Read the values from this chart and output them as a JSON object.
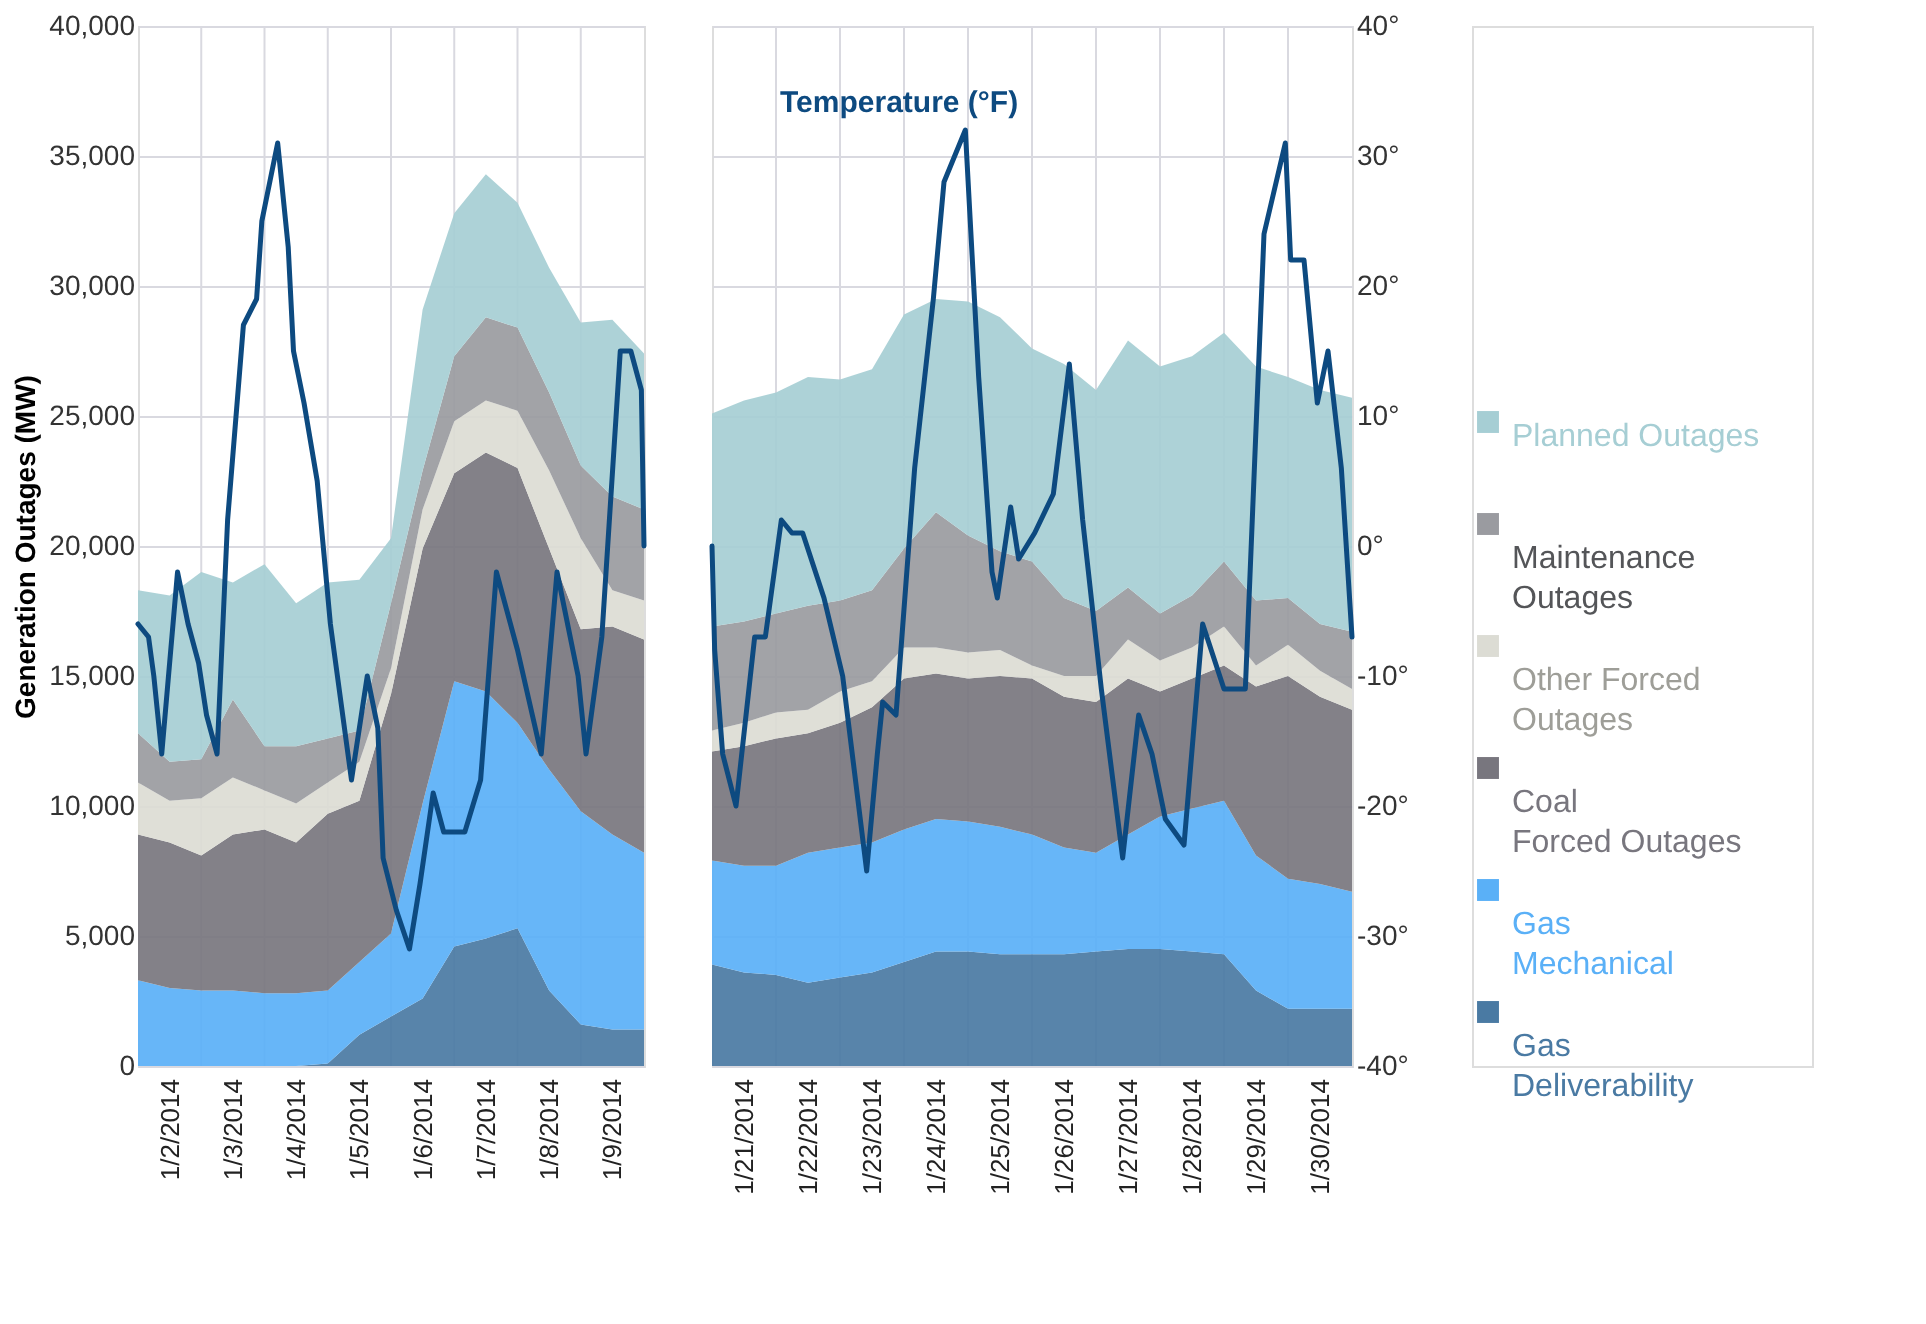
{
  "chart_data": [
    {
      "type": "area",
      "stacked": true,
      "ylabel": "Generation Outages (MW)",
      "grid": true,
      "x": [
        "2014-01-02T00:00",
        "2014-01-02T12:00",
        "2014-01-03T00:00",
        "2014-01-03T12:00",
        "2014-01-04T00:00",
        "2014-01-04T12:00",
        "2014-01-05T00:00",
        "2014-01-05T12:00",
        "2014-01-06T00:00",
        "2014-01-06T12:00",
        "2014-01-07T00:00",
        "2014-01-07T12:00",
        "2014-01-08T00:00",
        "2014-01-08T12:00",
        "2014-01-09T00:00",
        "2014-01-09T12:00",
        "2014-01-10T00:00"
      ],
      "xlim": [
        "2014-01-02T00:00",
        "2014-01-10T00:00"
      ],
      "xticks": [
        {
          "value": "2014-01-02T12:00",
          "label": "1/2/2014"
        },
        {
          "value": "2014-01-03T00:00",
          "label": null
        },
        {
          "value": "2014-01-03T12:00",
          "label": "1/3/2014"
        },
        {
          "value": "2014-01-04T00:00",
          "label": null
        },
        {
          "value": "2014-01-04T12:00",
          "label": "1/4/2014"
        },
        {
          "value": "2014-01-05T00:00",
          "label": null
        },
        {
          "value": "2014-01-05T12:00",
          "label": "1/5/2014"
        },
        {
          "value": "2014-01-06T00:00",
          "label": null
        },
        {
          "value": "2014-01-06T12:00",
          "label": "1/6/2014"
        },
        {
          "value": "2014-01-07T00:00",
          "label": null
        },
        {
          "value": "2014-01-07T12:00",
          "label": "1/7/2014"
        },
        {
          "value": "2014-01-08T00:00",
          "label": null
        },
        {
          "value": "2014-01-08T12:00",
          "label": "1/8/2014"
        },
        {
          "value": "2014-01-09T00:00",
          "label": null
        },
        {
          "value": "2014-01-09T12:00",
          "label": "1/9/2014"
        }
      ],
      "ylim": [
        0,
        40000
      ],
      "yticks": [
        {
          "value": 0,
          "label": "0"
        },
        {
          "value": 5000,
          "label": "5,000"
        },
        {
          "value": 10000,
          "label": "10,000"
        },
        {
          "value": 15000,
          "label": "15,000"
        },
        {
          "value": 20000,
          "label": "20,000"
        },
        {
          "value": 25000,
          "label": "25,000"
        },
        {
          "value": 30000,
          "label": "30,000"
        },
        {
          "value": 35000,
          "label": "35,000"
        },
        {
          "value": 40000,
          "label": "40,000"
        }
      ],
      "y2lim": [
        -40,
        40
      ],
      "series": [
        {
          "color": "#4a7aa3",
          "values": [
            0,
            0,
            0,
            0,
            0,
            0,
            100,
            1200,
            1900,
            2600,
            4600,
            4900,
            5300,
            2900,
            1600,
            1400,
            1400
          ]
        },
        {
          "color": "#5ab0f7",
          "values": [
            3300,
            3000,
            2900,
            2900,
            2800,
            2800,
            2800,
            2800,
            3200,
            7500,
            10200,
            9500,
            7900,
            8500,
            8200,
            7500,
            6800
          ]
        },
        {
          "color": "#78767e",
          "values": [
            5600,
            5600,
            5200,
            6000,
            6300,
            5800,
            6800,
            6200,
            9200,
            9800,
            8000,
            9200,
            9800,
            8500,
            7000,
            8000,
            8200
          ]
        },
        {
          "color": "#dcdcd4",
          "values": [
            2000,
            1600,
            2200,
            2200,
            1500,
            1500,
            1200,
            1500,
            1000,
            1500,
            2000,
            2000,
            2200,
            3000,
            3500,
            1400,
            1500
          ]
        },
        {
          "color": "#9a9ba0",
          "values": [
            1900,
            1500,
            1500,
            3000,
            1700,
            2200,
            1700,
            1200,
            2500,
            1500,
            2500,
            3200,
            3200,
            3000,
            2800,
            3600,
            3500
          ]
        },
        {
          "color": "#a6ced4",
          "values": [
            5500,
            6400,
            7200,
            4500,
            7000,
            5500,
            6000,
            5800,
            2500,
            6200,
            5500,
            5500,
            4800,
            4800,
            5500,
            6800,
            6000
          ]
        },
        {
          "type": "line",
          "axis": "y2",
          "color": "#0d4a80",
          "x": [
            "2014-01-02T00:00",
            "2014-01-02T04:00",
            "2014-01-02T06:00",
            "2014-01-02T09:00",
            "2014-01-02T15:00",
            "2014-01-02T19:00",
            "2014-01-02T23:00",
            "2014-01-03T02:00",
            "2014-01-03T06:00",
            "2014-01-03T10:00",
            "2014-01-03T16:00",
            "2014-01-03T21:00",
            "2014-01-03T23:00",
            "2014-01-04T05:00",
            "2014-01-04T09:00",
            "2014-01-04T11:00",
            "2014-01-04T15:00",
            "2014-01-04T20:00",
            "2014-01-05T01:00",
            "2014-01-05T09:00",
            "2014-01-05T15:00",
            "2014-01-05T19:00",
            "2014-01-05T21:00",
            "2014-01-06T02:00",
            "2014-01-06T07:00",
            "2014-01-06T11:00",
            "2014-01-06T16:00",
            "2014-01-06T20:00",
            "2014-01-07T04:00",
            "2014-01-07T10:00",
            "2014-01-07T16:00",
            "2014-01-08T00:00",
            "2014-01-08T09:00",
            "2014-01-08T15:00",
            "2014-01-08T23:00",
            "2014-01-09T02:00",
            "2014-01-09T08:00",
            "2014-01-09T15:00",
            "2014-01-09T19:00",
            "2014-01-09T23:00",
            "2014-01-10T00:00"
          ],
          "values": [
            -6,
            -7,
            -10,
            -16,
            -2,
            -6,
            -9,
            -13,
            -16,
            2,
            17,
            19,
            25,
            31,
            23,
            15,
            11,
            5,
            -6,
            -18,
            -10,
            -14,
            -24,
            -28,
            -31,
            -26,
            -19,
            -22,
            -22,
            -18,
            -2,
            -8,
            -16,
            -2,
            -10,
            -16,
            -7,
            15,
            15,
            12,
            0
          ]
        }
      ]
    },
    {
      "type": "area",
      "stacked": true,
      "grid": true,
      "legend": "right",
      "x": [
        "2014-01-21T00:00",
        "2014-01-21T12:00",
        "2014-01-22T00:00",
        "2014-01-22T12:00",
        "2014-01-23T00:00",
        "2014-01-23T12:00",
        "2014-01-24T00:00",
        "2014-01-24T12:00",
        "2014-01-25T00:00",
        "2014-01-25T12:00",
        "2014-01-26T00:00",
        "2014-01-26T12:00",
        "2014-01-27T00:00",
        "2014-01-27T12:00",
        "2014-01-28T00:00",
        "2014-01-28T12:00",
        "2014-01-29T00:00",
        "2014-01-29T12:00",
        "2014-01-30T00:00",
        "2014-01-30T12:00",
        "2014-01-31T00:00"
      ],
      "xlim": [
        "2014-01-21T00:00",
        "2014-01-31T00:00"
      ],
      "xticks": [
        {
          "value": "2014-01-21T12:00",
          "label": "1/21/2014"
        },
        {
          "value": "2014-01-22T00:00",
          "label": null
        },
        {
          "value": "2014-01-22T12:00",
          "label": "1/22/2014"
        },
        {
          "value": "2014-01-23T00:00",
          "label": null
        },
        {
          "value": "2014-01-23T12:00",
          "label": "1/23/2014"
        },
        {
          "value": "2014-01-24T00:00",
          "label": null
        },
        {
          "value": "2014-01-24T12:00",
          "label": "1/24/2014"
        },
        {
          "value": "2014-01-25T00:00",
          "label": null
        },
        {
          "value": "2014-01-25T12:00",
          "label": "1/25/2014"
        },
        {
          "value": "2014-01-26T00:00",
          "label": null
        },
        {
          "value": "2014-01-26T12:00",
          "label": "1/26/2014"
        },
        {
          "value": "2014-01-27T00:00",
          "label": null
        },
        {
          "value": "2014-01-27T12:00",
          "label": "1/27/2014"
        },
        {
          "value": "2014-01-28T00:00",
          "label": null
        },
        {
          "value": "2014-01-28T12:00",
          "label": "1/28/2014"
        },
        {
          "value": "2014-01-29T00:00",
          "label": null
        },
        {
          "value": "2014-01-29T12:00",
          "label": "1/29/2014"
        },
        {
          "value": "2014-01-30T00:00",
          "label": null
        },
        {
          "value": "2014-01-30T12:00",
          "label": "1/30/2014"
        }
      ],
      "ylim": [
        0,
        40000
      ],
      "y2lim": [
        -40,
        40
      ],
      "y2ticks": [
        {
          "value": -40,
          "label": "-40°"
        },
        {
          "value": -30,
          "label": "-30°"
        },
        {
          "value": -20,
          "label": "-20°"
        },
        {
          "value": -10,
          "label": "-10°"
        },
        {
          "value": 0,
          "label": "0°"
        },
        {
          "value": 10,
          "label": "10°"
        },
        {
          "value": 20,
          "label": "20°"
        },
        {
          "value": 30,
          "label": "30°"
        },
        {
          "value": 40,
          "label": "40°"
        }
      ],
      "series": [
        {
          "name": "Gas\nDeliverability",
          "color": "#4a7aa3",
          "values": [
            3900,
            3600,
            3500,
            3200,
            3400,
            3600,
            4000,
            4400,
            4400,
            4300,
            4300,
            4300,
            4400,
            4500,
            4500,
            4400,
            4300,
            2900,
            2200,
            2200,
            2200
          ]
        },
        {
          "name": "Gas\nMechanical",
          "color": "#5ab0f7",
          "values": [
            4000,
            4100,
            4200,
            5000,
            5000,
            5000,
            5100,
            5100,
            5000,
            4900,
            4600,
            4100,
            3800,
            4400,
            5100,
            5500,
            5900,
            5200,
            5000,
            4800,
            4500
          ]
        },
        {
          "name": "Coal\nForced Outages",
          "color": "#78767e",
          "values": [
            4200,
            4600,
            4900,
            4600,
            4800,
            5200,
            5800,
            5600,
            5500,
            5800,
            6000,
            5800,
            5800,
            6000,
            4800,
            5000,
            5200,
            6500,
            7800,
            7200,
            7000
          ]
        },
        {
          "name": "Other Forced\nOutages",
          "color": "#dcdcd4",
          "values": [
            800,
            900,
            1000,
            900,
            1200,
            1000,
            1200,
            1000,
            1000,
            1000,
            500,
            800,
            1000,
            1500,
            1200,
            1200,
            1500,
            800,
            1200,
            1000,
            800
          ]
        },
        {
          "name": "Maintenance\nOutages",
          "color": "#9a9ba0",
          "values": [
            4000,
            3900,
            3800,
            4000,
            3500,
            3500,
            3800,
            5200,
            4500,
            3800,
            4000,
            3000,
            2500,
            2000,
            1800,
            2000,
            2500,
            2500,
            1800,
            1800,
            2200
          ]
        },
        {
          "name": "Planned Outages",
          "color": "#a6ced4",
          "values": [
            8200,
            8500,
            8500,
            8800,
            8500,
            8500,
            9000,
            8200,
            9000,
            9000,
            8200,
            9000,
            8500,
            9500,
            9500,
            9200,
            8800,
            9000,
            8500,
            9000,
            9000
          ]
        },
        {
          "name": "Temperature (°F)",
          "type": "line",
          "axis": "y2",
          "color": "#0d4a80",
          "x": [
            "2014-01-21T00:00",
            "2014-01-21T01:00",
            "2014-01-21T04:00",
            "2014-01-21T09:00",
            "2014-01-21T16:00",
            "2014-01-21T20:00",
            "2014-01-22T02:00",
            "2014-01-22T06:00",
            "2014-01-22T10:00",
            "2014-01-22T18:00",
            "2014-01-23T01:00",
            "2014-01-23T10:00",
            "2014-01-23T14:00",
            "2014-01-23T16:00",
            "2014-01-23T21:00",
            "2014-01-24T04:00",
            "2014-01-24T11:00",
            "2014-01-24T15:00",
            "2014-01-24T23:00",
            "2014-01-25T04:00",
            "2014-01-25T09:00",
            "2014-01-25T11:00",
            "2014-01-25T16:00",
            "2014-01-25T19:00",
            "2014-01-26T01:00",
            "2014-01-26T08:00",
            "2014-01-26T14:00",
            "2014-01-26T19:00",
            "2014-01-27T02:00",
            "2014-01-27T10:00",
            "2014-01-27T16:00",
            "2014-01-27T21:00",
            "2014-01-28T02:00",
            "2014-01-28T09:00",
            "2014-01-28T16:00",
            "2014-01-29T00:00",
            "2014-01-29T08:00",
            "2014-01-29T15:00",
            "2014-01-29T23:00",
            "2014-01-30T01:00",
            "2014-01-30T06:00",
            "2014-01-30T11:00",
            "2014-01-30T15:00",
            "2014-01-30T20:00",
            "2014-01-31T00:00"
          ],
          "values": [
            0,
            -8,
            -16,
            -20,
            -7,
            -7,
            2,
            1,
            1,
            -4,
            -10,
            -25,
            -16,
            -12,
            -13,
            6,
            19,
            28,
            32,
            13,
            -2,
            -4,
            3,
            -1,
            1,
            4,
            14,
            2,
            -11,
            -24,
            -13,
            -16,
            -21,
            -23,
            -6,
            -11,
            -11,
            24,
            31,
            22,
            22,
            11,
            15,
            6,
            -7
          ]
        }
      ]
    }
  ]
}
